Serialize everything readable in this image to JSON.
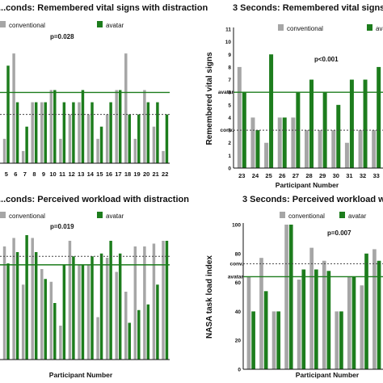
{
  "colors": {
    "conventional": "#a6a6a6",
    "avatar": "#1d7d1d",
    "axis": "#111111"
  },
  "chart_data": [
    {
      "type": "bar",
      "title": "...conds: Remembered vital signs with distraction",
      "xlabel": "",
      "ylabel": "",
      "ylim": [
        0,
        11
      ],
      "pvalue": "p=0.028",
      "categories": [
        "5",
        "6",
        "7",
        "8",
        "9",
        "10",
        "11",
        "12",
        "13",
        "14",
        "15",
        "16",
        "17",
        "18",
        "19",
        "20",
        "21",
        "22"
      ],
      "series": [
        {
          "name": "conventional",
          "values": [
            2,
            9,
            1,
            5,
            5,
            6,
            2,
            4,
            5,
            4,
            2,
            4,
            6,
            9,
            2,
            6,
            3,
            1
          ]
        },
        {
          "name": "avatar",
          "values": [
            8,
            5,
            3,
            5,
            5,
            6,
            5,
            5,
            6,
            5,
            3,
            5,
            6,
            4,
            4,
            5,
            5,
            4
          ]
        }
      ],
      "reference_lines": [
        {
          "label": "avatar",
          "value": 5.8,
          "style": "solid"
        },
        {
          "label": "conv.",
          "value": 4.0,
          "style": "dotted"
        }
      ]
    },
    {
      "type": "bar",
      "title": "3 Seconds: Remembered vital signs",
      "xlabel": "Participant Number",
      "ylabel": "Remembered vital signs",
      "ylim": [
        0,
        11
      ],
      "yticks": [
        "0",
        "1",
        "2",
        "3",
        "4",
        "5",
        "6",
        "7",
        "8",
        "9",
        "10",
        "11"
      ],
      "pvalue": "p<0.001",
      "categories": [
        "23",
        "24",
        "25",
        "26",
        "27",
        "28",
        "29",
        "30",
        "31",
        "32",
        "33"
      ],
      "series": [
        {
          "name": "conventional",
          "values": [
            8,
            4,
            2,
            4,
            4,
            3,
            3,
            3,
            2,
            3,
            3
          ]
        },
        {
          "name": "avatar",
          "values": [
            6,
            3,
            9,
            4,
            6,
            7,
            6,
            5,
            7,
            7,
            8
          ]
        }
      ],
      "reference_lines": [
        {
          "label": "avatar",
          "value": 6.0,
          "style": "solid"
        },
        {
          "label": "conv.",
          "value": 3.0,
          "style": "dotted"
        }
      ]
    },
    {
      "type": "bar",
      "title": "...conds: Perceived workload with distraction",
      "xlabel": "Participant Number",
      "ylabel": "",
      "ylim": [
        0,
        100
      ],
      "pvalue": "p=0.019",
      "categories": [
        "5",
        "6",
        "7",
        "8",
        "9",
        "10",
        "11",
        "12",
        "13",
        "14",
        "15",
        "16",
        "17",
        "18",
        "19",
        "20",
        "21",
        "22"
      ],
      "series": [
        {
          "name": "conventional",
          "values": [
            80,
            86,
            53,
            86,
            64,
            55,
            24,
            84,
            67,
            67,
            30,
            72,
            62,
            48,
            80,
            80,
            82,
            84
          ]
        },
        {
          "name": "avatar",
          "values": [
            68,
            76,
            88,
            76,
            57,
            40,
            67,
            73,
            67,
            73,
            75,
            84,
            75,
            26,
            35,
            39,
            53,
            84
          ]
        }
      ],
      "reference_lines": [
        {
          "label": "conv.",
          "value": 73,
          "style": "dotted"
        },
        {
          "label": "avatar",
          "value": 67,
          "style": "solid"
        }
      ]
    },
    {
      "type": "bar",
      "title": "3 Seconds: Perceived workload wit...",
      "xlabel": "Participant Number",
      "ylabel": "NASA task load index",
      "ylim": [
        0,
        100
      ],
      "yticks": [
        "0",
        "20",
        "40",
        "60",
        "80",
        "100"
      ],
      "pvalue": "p=0.007",
      "categories": [
        "23",
        "24",
        "25",
        "26",
        "27",
        "28",
        "29",
        "30",
        "31",
        "32",
        "33"
      ],
      "series": [
        {
          "name": "conventional",
          "values": [
            64,
            77,
            40,
            100,
            62,
            84,
            75,
            40,
            64,
            58,
            83
          ]
        },
        {
          "name": "avatar",
          "values": [
            40,
            54,
            40,
            100,
            69,
            69,
            68,
            40,
            64,
            80,
            75
          ]
        }
      ],
      "reference_lines": [
        {
          "label": "conv.",
          "value": 73,
          "style": "dotted"
        },
        {
          "label": "avatar",
          "value": 64,
          "style": "solid"
        }
      ]
    }
  ]
}
